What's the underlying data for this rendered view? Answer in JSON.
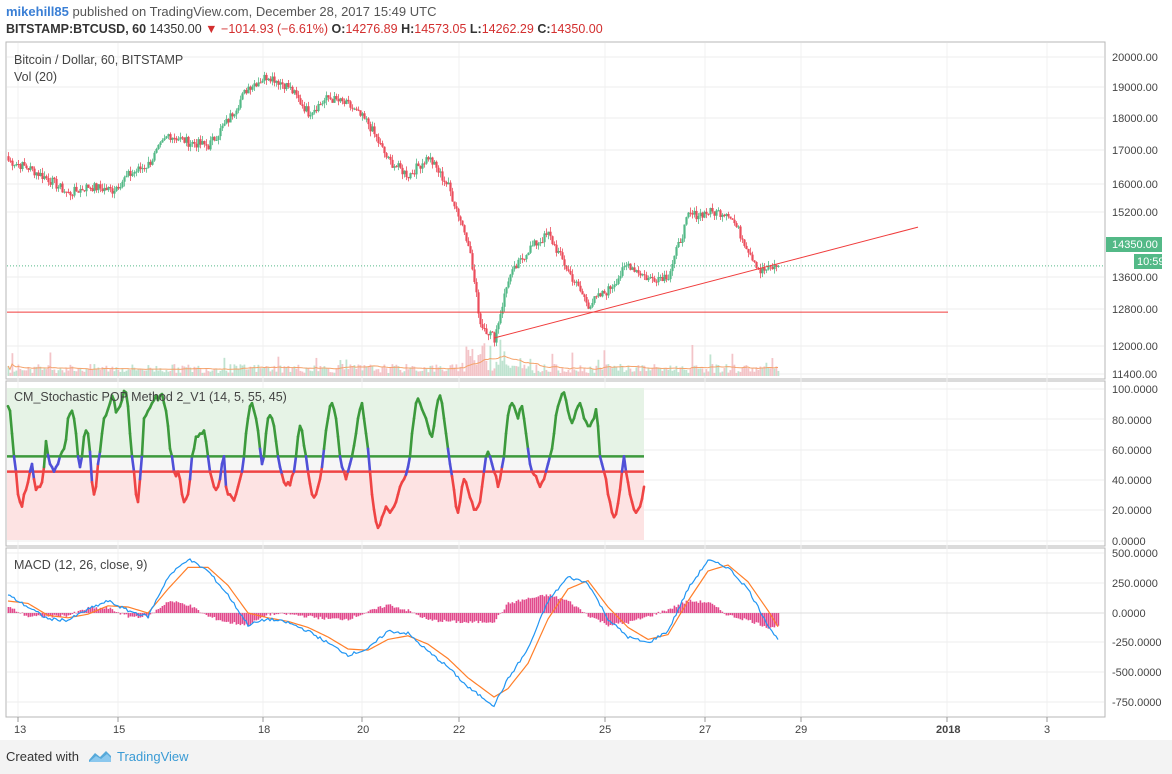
{
  "header": {
    "author": "mikehill85",
    "published_text": "published on TradingView.com, December 28, 2017 15:49 UTC",
    "symbol": "BITSTAMP:BTCUSD, 60",
    "last": "14350.00",
    "change": "−1014.93 (−6.61%)",
    "open_label": "O:",
    "open": "14276.89",
    "high_label": "H:",
    "high": "14573.05",
    "low_label": "L:",
    "low": "14262.29",
    "close_label": "C:",
    "close": "14350.00"
  },
  "panes": {
    "price_title": "Bitcoin / Dollar, 60, BITSTAMP",
    "volume_title": "Vol (20)",
    "stoch_title": "CM_Stochastic POP Method 2_V1 (14, 5, 55, 45)",
    "macd_title": "MACD (12, 26, close, 9)"
  },
  "price_badge": "14350.00",
  "countdown_badge": "10:59",
  "footer": {
    "created": "Created with",
    "brand": "TradingView"
  },
  "colors": {
    "up": "#53b987",
    "down": "#eb4d5c",
    "stoch_green": "#3c9a3c",
    "stoch_red": "#ef4444",
    "stoch_blue": "#5050d8",
    "macd_line": "#2196f3",
    "signal_line": "#ff7f2a",
    "hist": "#e24a8c",
    "trend_line": "#f03c3c",
    "accent": "#3a7fd5"
  },
  "chart_data": [
    {
      "type": "candlestick",
      "title": "Bitcoin / Dollar, 60, BITSTAMP",
      "x_ticks": [
        "13",
        "15",
        "18",
        "20",
        "22",
        "25",
        "27",
        "29",
        "2018",
        "3"
      ],
      "ylim": [
        11400,
        20200
      ],
      "y_ticks": [
        11400,
        12000,
        12800,
        13600,
        14350,
        15200,
        16000,
        17000,
        18000,
        19000,
        20000
      ],
      "last_price": 14350.0,
      "path_points": [
        [
          0,
          17200
        ],
        [
          10,
          17000
        ],
        [
          20,
          16700
        ],
        [
          30,
          16300
        ],
        [
          40,
          16500
        ],
        [
          52,
          16400
        ],
        [
          60,
          16800
        ],
        [
          70,
          17100
        ],
        [
          80,
          17900
        ],
        [
          90,
          17700
        ],
        [
          100,
          17600
        ],
        [
          110,
          18300
        ],
        [
          120,
          19200
        ],
        [
          130,
          19500
        ],
        [
          140,
          19200
        ],
        [
          150,
          18500
        ],
        [
          160,
          18900
        ],
        [
          170,
          18700
        ],
        [
          180,
          18200
        ],
        [
          190,
          17200
        ],
        [
          200,
          16800
        ],
        [
          210,
          17300
        ],
        [
          220,
          16500
        ],
        [
          230,
          15000
        ],
        [
          236,
          12800
        ],
        [
          243,
          12400
        ],
        [
          250,
          14000
        ],
        [
          260,
          14800
        ],
        [
          270,
          15200
        ],
        [
          280,
          14200
        ],
        [
          290,
          13300
        ],
        [
          300,
          13700
        ],
        [
          310,
          14400
        ],
        [
          320,
          14000
        ],
        [
          330,
          14100
        ],
        [
          340,
          15700
        ],
        [
          350,
          15800
        ],
        [
          360,
          15800
        ],
        [
          370,
          14800
        ],
        [
          376,
          14200
        ],
        [
          385,
          14350
        ]
      ],
      "horizontal_level": 13100,
      "trend_line": [
        [
          243,
          12400
        ],
        [
          455,
          15400
        ]
      ]
    },
    {
      "type": "bar",
      "title": "Vol (20)",
      "note": "volume histogram with 20-period average"
    },
    {
      "type": "line",
      "title": "CM_Stochastic POP Method 2_V1 (14, 5, 55, 45)",
      "ylim": [
        -1,
        101
      ],
      "y_ticks": [
        0,
        20,
        40,
        60,
        80,
        100
      ],
      "upper_level": 55,
      "lower_level": 45,
      "series": [
        {
          "values": [
            88,
            85,
            70,
            55,
            45,
            30,
            25,
            22,
            30,
            33,
            38,
            45,
            50,
            40,
            33,
            35,
            35,
            38,
            48,
            65,
            56,
            50,
            48,
            45,
            48,
            50,
            55,
            58,
            60,
            66,
            80,
            83,
            85,
            80,
            70,
            55,
            48,
            55,
            68,
            72,
            70,
            58,
            38,
            30,
            35,
            50,
            58,
            70,
            80,
            82,
            86,
            90,
            95,
            92,
            84,
            86,
            88,
            92,
            98,
            97,
            88,
            70,
            55,
            45,
            30,
            25,
            40,
            56,
            80,
            82,
            85,
            87,
            90,
            92,
            95,
            92,
            95,
            96,
            90,
            85,
            75,
            60,
            55,
            45,
            42,
            45,
            40,
            30,
            25,
            27,
            30,
            40,
            55,
            60,
            68,
            68,
            70,
            70,
            72,
            65,
            55,
            45,
            40,
            35,
            33,
            35,
            40,
            50,
            55,
            35,
            30,
            30,
            28,
            26,
            30,
            35,
            40,
            45,
            55,
            70,
            80,
            88,
            90,
            85,
            80,
            72,
            60,
            50,
            55,
            70,
            80,
            82,
            80,
            75,
            65,
            55,
            48,
            43,
            38,
            36,
            38,
            36,
            42,
            45,
            55,
            68,
            75,
            72,
            62,
            55,
            45,
            37,
            30,
            28,
            30,
            35,
            40,
            48,
            60,
            72,
            80,
            88,
            90,
            86,
            80,
            68,
            55,
            48,
            45,
            40,
            45,
            50,
            55,
            62,
            70,
            80,
            86,
            90,
            80,
            70,
            60,
            45,
            30,
            20,
            12,
            8,
            10,
            15,
            18,
            22,
            20,
            18,
            20,
            22,
            25,
            30,
            35,
            38,
            40,
            43,
            48,
            55,
            70,
            80,
            90,
            93,
            90,
            86,
            83,
            80,
            75,
            70,
            68,
            75,
            85,
            92,
            95,
            90,
            80,
            70,
            60,
            50,
            42,
            33,
            22,
            18,
            25,
            35,
            40,
            38,
            33,
            28,
            25,
            20,
            20,
            22,
            25,
            35,
            45,
            55,
            58,
            55,
            50,
            45,
            42,
            35,
            40,
            48,
            55,
            70,
            82,
            88,
            90,
            88,
            84,
            80,
            86,
            88,
            80,
            70,
            60,
            50,
            45,
            43,
            42,
            38,
            35,
            38,
            40,
            45,
            50,
            55,
            60,
            70,
            82,
            88,
            92,
            96,
            97,
            92,
            85,
            80,
            77,
            80,
            85,
            88,
            90,
            86,
            80,
            78,
            75,
            75,
            78,
            80,
            86,
            75,
            55,
            50,
            45,
            40,
            30,
            25,
            18,
            15,
            17,
            24,
            33,
            45,
            55,
            45,
            38,
            30,
            25,
            20,
            18,
            20,
            22,
            27,
            35
          ]
        }
      ]
    },
    {
      "type": "line",
      "title": "MACD (12, 26, close, 9)",
      "ylim": [
        -800,
        530
      ],
      "y_ticks": [
        -750,
        -500,
        -250,
        0,
        250,
        500
      ],
      "series": [
        {
          "name": "MACD",
          "anchors": [
            [
              0,
              150
            ],
            [
              10,
              50
            ],
            [
              20,
              -50
            ],
            [
              30,
              -60
            ],
            [
              40,
              30
            ],
            [
              50,
              100
            ],
            [
              60,
              20
            ],
            [
              70,
              -30
            ],
            [
              80,
              300
            ],
            [
              90,
              450
            ],
            [
              100,
              350
            ],
            [
              110,
              150
            ],
            [
              120,
              -100
            ],
            [
              130,
              -50
            ],
            [
              140,
              -80
            ],
            [
              150,
              -150
            ],
            [
              160,
              -250
            ],
            [
              170,
              -350
            ],
            [
              180,
              -300
            ],
            [
              190,
              -150
            ],
            [
              200,
              -170
            ],
            [
              210,
              -320
            ],
            [
              220,
              -450
            ],
            [
              230,
              -620
            ],
            [
              243,
              -770
            ],
            [
              250,
              -550
            ],
            [
              260,
              -300
            ],
            [
              270,
              100
            ],
            [
              280,
              300
            ],
            [
              290,
              250
            ],
            [
              300,
              -50
            ],
            [
              310,
              -200
            ],
            [
              320,
              -250
            ],
            [
              330,
              -150
            ],
            [
              340,
              200
            ],
            [
              350,
              440
            ],
            [
              360,
              380
            ],
            [
              370,
              200
            ],
            [
              380,
              -100
            ],
            [
              390,
              -350
            ],
            [
              400,
              -250
            ]
          ]
        },
        {
          "name": "Signal",
          "anchors": [
            [
              0,
              100
            ],
            [
              10,
              80
            ],
            [
              20,
              -20
            ],
            [
              30,
              -40
            ],
            [
              40,
              -10
            ],
            [
              50,
              60
            ],
            [
              60,
              50
            ],
            [
              70,
              0
            ],
            [
              80,
              200
            ],
            [
              90,
              380
            ],
            [
              100,
              380
            ],
            [
              110,
              230
            ],
            [
              120,
              0
            ],
            [
              130,
              -40
            ],
            [
              140,
              -70
            ],
            [
              150,
              -120
            ],
            [
              160,
              -200
            ],
            [
              170,
              -300
            ],
            [
              180,
              -310
            ],
            [
              190,
              -220
            ],
            [
              200,
              -190
            ],
            [
              210,
              -260
            ],
            [
              220,
              -380
            ],
            [
              230,
              -540
            ],
            [
              243,
              -700
            ],
            [
              250,
              -630
            ],
            [
              260,
              -420
            ],
            [
              270,
              -50
            ],
            [
              280,
              200
            ],
            [
              290,
              270
            ],
            [
              300,
              50
            ],
            [
              310,
              -120
            ],
            [
              320,
              -220
            ],
            [
              330,
              -180
            ],
            [
              340,
              100
            ],
            [
              350,
              350
            ],
            [
              360,
              400
            ],
            [
              370,
              260
            ],
            [
              380,
              20
            ],
            [
              390,
              -250
            ],
            [
              400,
              -300
            ]
          ]
        }
      ]
    }
  ],
  "axis_labels": {
    "price": [
      "20000.00",
      "19000.00",
      "18000.00",
      "17000.00",
      "16000.00",
      "15200.00",
      "14350.00",
      "13600.00",
      "12800.00",
      "12000.00",
      "11400.00"
    ],
    "stoch": [
      "100.0000",
      "80.0000",
      "60.0000",
      "40.0000",
      "20.0000",
      "0.0000"
    ],
    "macd": [
      "500.0000",
      "250.0000",
      "0.0000",
      "-250.0000",
      "-500.0000",
      "-750.0000"
    ],
    "time": [
      "13",
      "15",
      "18",
      "20",
      "22",
      "25",
      "27",
      "29",
      "2018",
      "3"
    ]
  }
}
